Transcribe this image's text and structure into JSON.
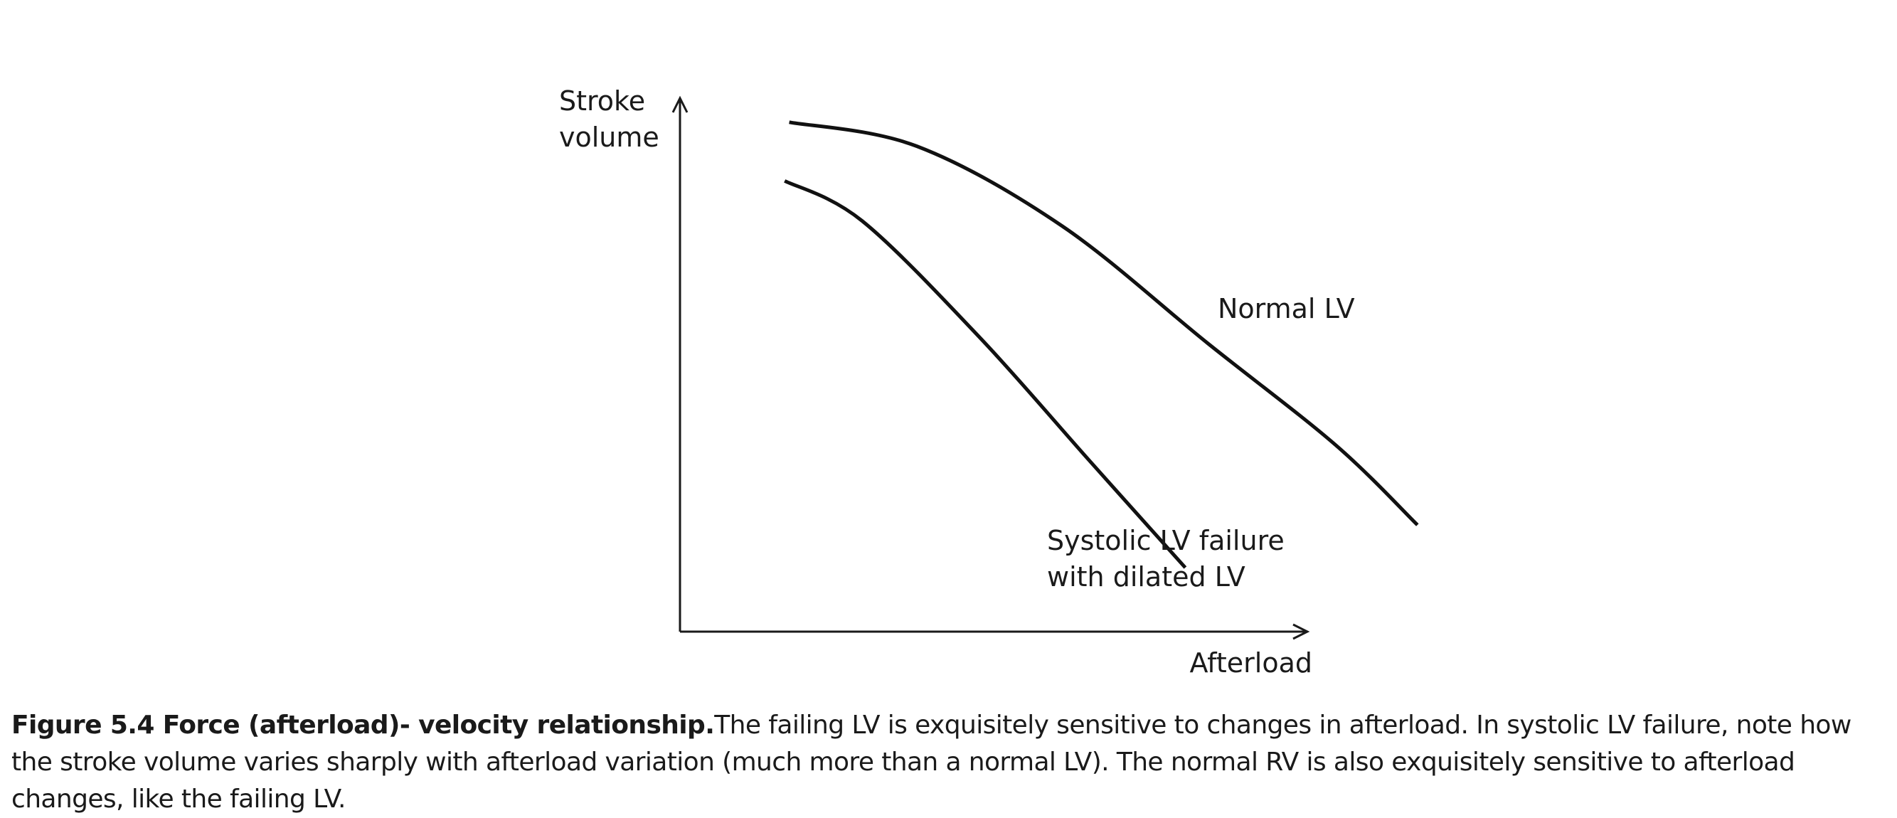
{
  "chart_data": {
    "type": "line",
    "ylabel": [
      "Stroke",
      "volume"
    ],
    "xlabel": "Afterload",
    "xlim": [
      0,
      1
    ],
    "ylim": [
      0,
      1
    ],
    "grid": false,
    "series": [
      {
        "name": "Normal LV",
        "points": [
          [
            0.12,
            0.955
          ],
          [
            0.26,
            0.91
          ],
          [
            0.42,
            0.76
          ],
          [
            0.58,
            0.54
          ],
          [
            0.72,
            0.35
          ],
          [
            0.81,
            0.2
          ]
        ],
        "label_lines": [
          "Normal LV"
        ]
      },
      {
        "name": "Systolic LV failure with dilated LV",
        "points": [
          [
            0.115,
            0.845
          ],
          [
            0.2,
            0.77
          ],
          [
            0.33,
            0.55
          ],
          [
            0.45,
            0.32
          ],
          [
            0.555,
            0.12
          ]
        ],
        "label_lines": [
          "Systolic LV failure",
          "with dilated LV"
        ]
      }
    ]
  },
  "caption": {
    "title": "Figure 5.4  Force (afterload)- velocity relationship.",
    "body": "The failing LV is exquisitely sensitive to changes in afterload. In systolic LV failure, note how the stroke volume varies sharply with afterload variation (much more than a normal LV). The normal RV is also exquisitely sensitive to afterload changes, like the failing LV."
  }
}
